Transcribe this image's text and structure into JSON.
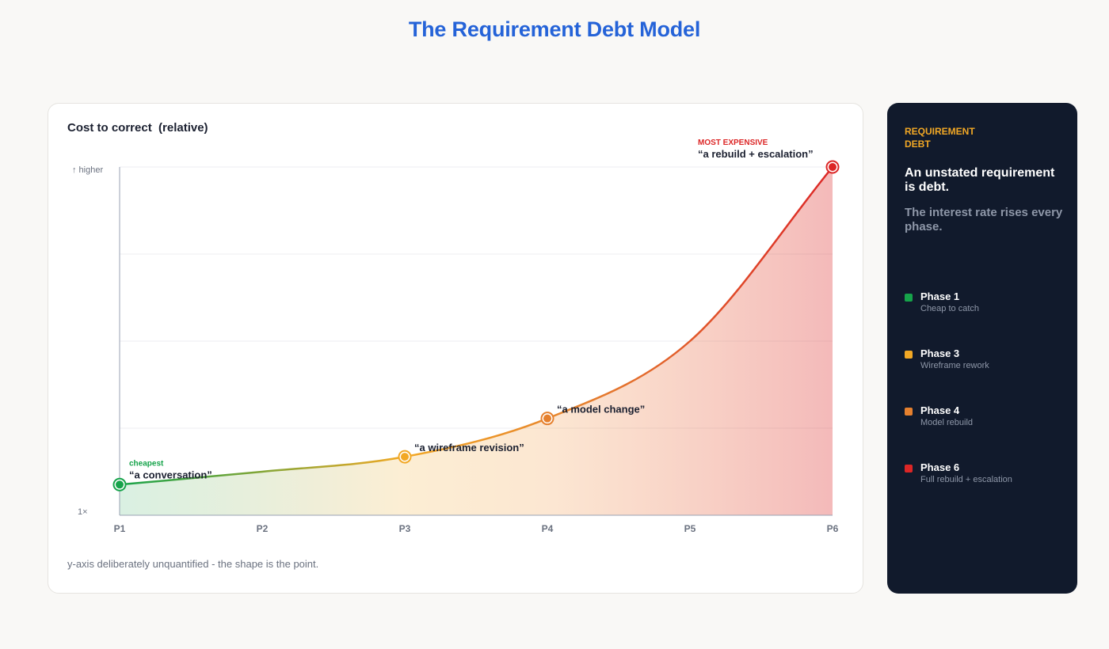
{
  "page": {
    "title": "The Requirement Debt Model",
    "footnote": "y-axis deliberately unquantified - the shape is the point."
  },
  "chart_data": {
    "type": "area",
    "title": "Cost to correct  (relative)",
    "ylabel_top": "↑ higher",
    "ylabel_bottom": "1×",
    "categories": [
      "P1",
      "P2",
      "P3",
      "P4",
      "P5",
      "P6"
    ],
    "ylim": [
      0,
      1
    ],
    "grid": true,
    "y_quantified": false,
    "series": [
      {
        "relative_values": [
          0.088,
          0.125,
          0.168,
          0.278,
          0.5,
          1.0
        ],
        "gradient_colors": [
          "#16a34a",
          "#f59e0b",
          "#e5802e",
          "#dc2626"
        ]
      }
    ],
    "annotations": [
      {
        "category": "P1",
        "tag": "cheapest",
        "quote": "“a conversation”",
        "color": "#16a34a"
      },
      {
        "category": "P3",
        "tag": "",
        "quote": "“a wireframe revision”",
        "color": "#f2a825"
      },
      {
        "category": "P4",
        "tag": "",
        "quote": "“a model change”",
        "color": "#e5802e"
      },
      {
        "category": "P6",
        "tag": "MOST EXPENSIVE",
        "quote": "“a rebuild + escalation”",
        "color": "#dc2626"
      }
    ]
  },
  "sidebar": {
    "tag": "REQUIREMENT DEBT",
    "heading": "An unstated requirement is debt.",
    "subheading": "The interest rate rises every phase.",
    "legend": [
      {
        "title": "Phase 1",
        "desc": "Cheap to catch",
        "color": "#16a34a"
      },
      {
        "title": "Phase 3",
        "desc": "Wireframe rework",
        "color": "#f2a825"
      },
      {
        "title": "Phase 4",
        "desc": "Model rebuild",
        "color": "#e5802e"
      },
      {
        "title": "Phase 6",
        "desc": "Full rebuild + escalation",
        "color": "#dc2626"
      }
    ]
  }
}
